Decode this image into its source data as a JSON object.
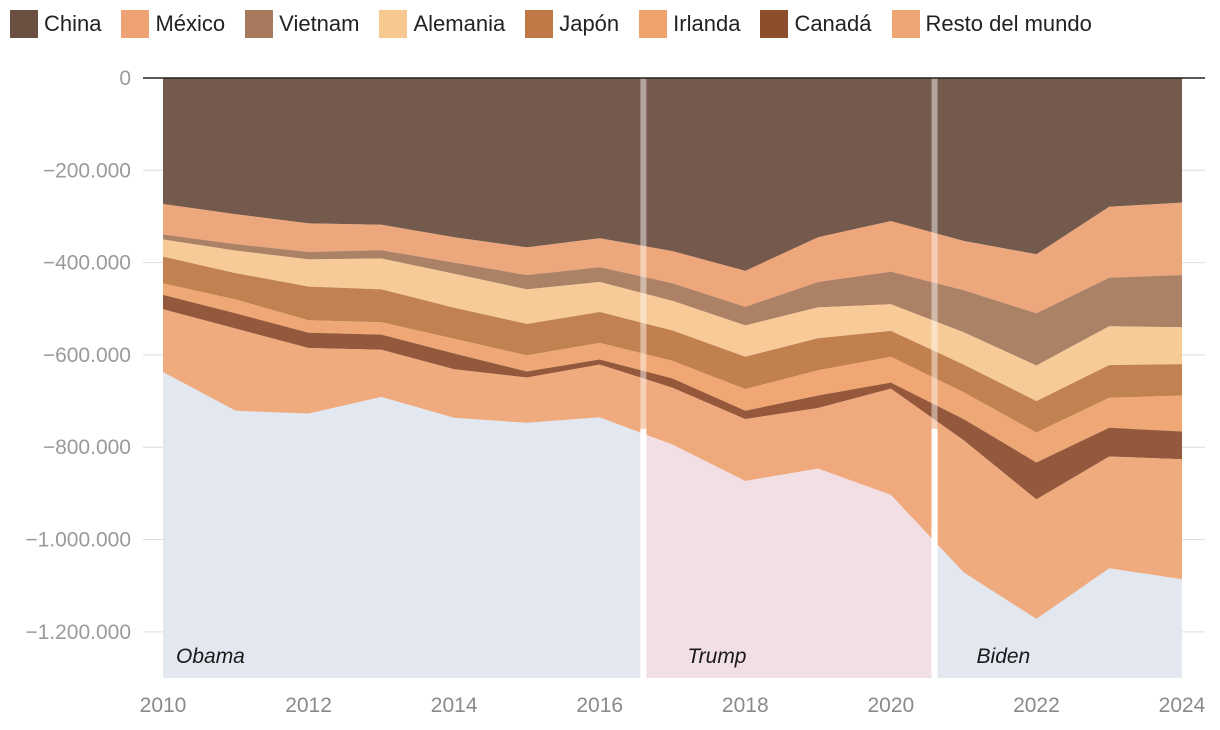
{
  "chart_data": {
    "type": "area",
    "stacked": true,
    "title": "",
    "xlabel": "",
    "ylabel": "",
    "x": [
      2010,
      2011,
      2012,
      2013,
      2014,
      2015,
      2016,
      2017,
      2018,
      2019,
      2020,
      2021,
      2022,
      2023,
      2024
    ],
    "xlim": [
      2010,
      2024
    ],
    "ylim": [
      -1300000,
      0
    ],
    "x_ticks": [
      2010,
      2012,
      2014,
      2016,
      2018,
      2020,
      2022,
      2024
    ],
    "x_tick_labels": [
      "2010",
      "2012",
      "2014",
      "2016",
      "2018",
      "2020",
      "2022",
      "2024"
    ],
    "y_ticks": [
      0,
      -200000,
      -400000,
      -600000,
      -800000,
      -1000000,
      -1200000
    ],
    "y_tick_labels": [
      "0",
      "−200.000",
      "−400.000",
      "−600.000",
      "−800.000",
      "−1.000.000",
      "−1.200.000"
    ],
    "grid": true,
    "legend_position": "top",
    "series": [
      {
        "name": "China",
        "color": "#6b4f41",
        "values": [
          -273000,
          -295000,
          -315000,
          -318000,
          -345000,
          -367000,
          -347000,
          -375000,
          -418000,
          -345000,
          -310000,
          -353000,
          -382000,
          -279000,
          -270000
        ]
      },
      {
        "name": "México",
        "color": "#eea173",
        "values": [
          -66000,
          -65000,
          -62000,
          -55000,
          -55000,
          -60000,
          -63000,
          -70000,
          -78000,
          -97000,
          -110000,
          -107000,
          -128000,
          -154000,
          -157000
        ]
      },
      {
        "name": "Vietnam",
        "color": "#a87a5d",
        "values": [
          -11000,
          -14000,
          -16000,
          -18000,
          -24000,
          -31000,
          -32000,
          -38000,
          -40000,
          -55000,
          -70000,
          -91000,
          -113000,
          -105000,
          -113000
        ]
      },
      {
        "name": "Alemania",
        "color": "#f8c891",
        "values": [
          -37000,
          -49000,
          -59000,
          -67000,
          -74000,
          -75000,
          -65000,
          -64000,
          -68000,
          -67000,
          -58000,
          -70000,
          -77000,
          -84000,
          -80000
        ]
      },
      {
        "name": "Japón",
        "color": "#c07844",
        "values": [
          -58000,
          -57000,
          -73000,
          -71000,
          -67000,
          -68000,
          -67000,
          -66000,
          -70000,
          -69000,
          -56000,
          -60000,
          -68000,
          -71000,
          -68000
        ]
      },
      {
        "name": "Irlanda",
        "color": "#f0a26c",
        "values": [
          -25000,
          -30000,
          -27000,
          -27000,
          -32000,
          -35000,
          -36000,
          -38000,
          -47000,
          -55000,
          -56000,
          -58000,
          -65000,
          -65000,
          -78000
        ]
      },
      {
        "name": "Canadá",
        "color": "#8e4e2e",
        "values": [
          -31000,
          -33000,
          -33000,
          -33000,
          -34000,
          -13000,
          -11000,
          -20000,
          -18000,
          -27000,
          -13000,
          -46000,
          -80000,
          -62000,
          -60000
        ]
      },
      {
        "name": "Resto del mundo",
        "color": "#f0a575",
        "values": [
          -136000,
          -178000,
          -142000,
          -102000,
          -105000,
          -98000,
          -114000,
          -123000,
          -134000,
          -131000,
          -230000,
          -286000,
          -259000,
          -242000,
          -260000
        ]
      }
    ],
    "annotations": [
      {
        "label": "Obama",
        "start": 2010,
        "end": 2016.6,
        "color": "#e3e7ef"
      },
      {
        "label": "Trump",
        "start": 2016.6,
        "end": 2020.6,
        "color": "#f2dfe3"
      },
      {
        "label": "Biden",
        "start": 2020.6,
        "end": 2024,
        "color": "#e3e7ef"
      }
    ]
  }
}
